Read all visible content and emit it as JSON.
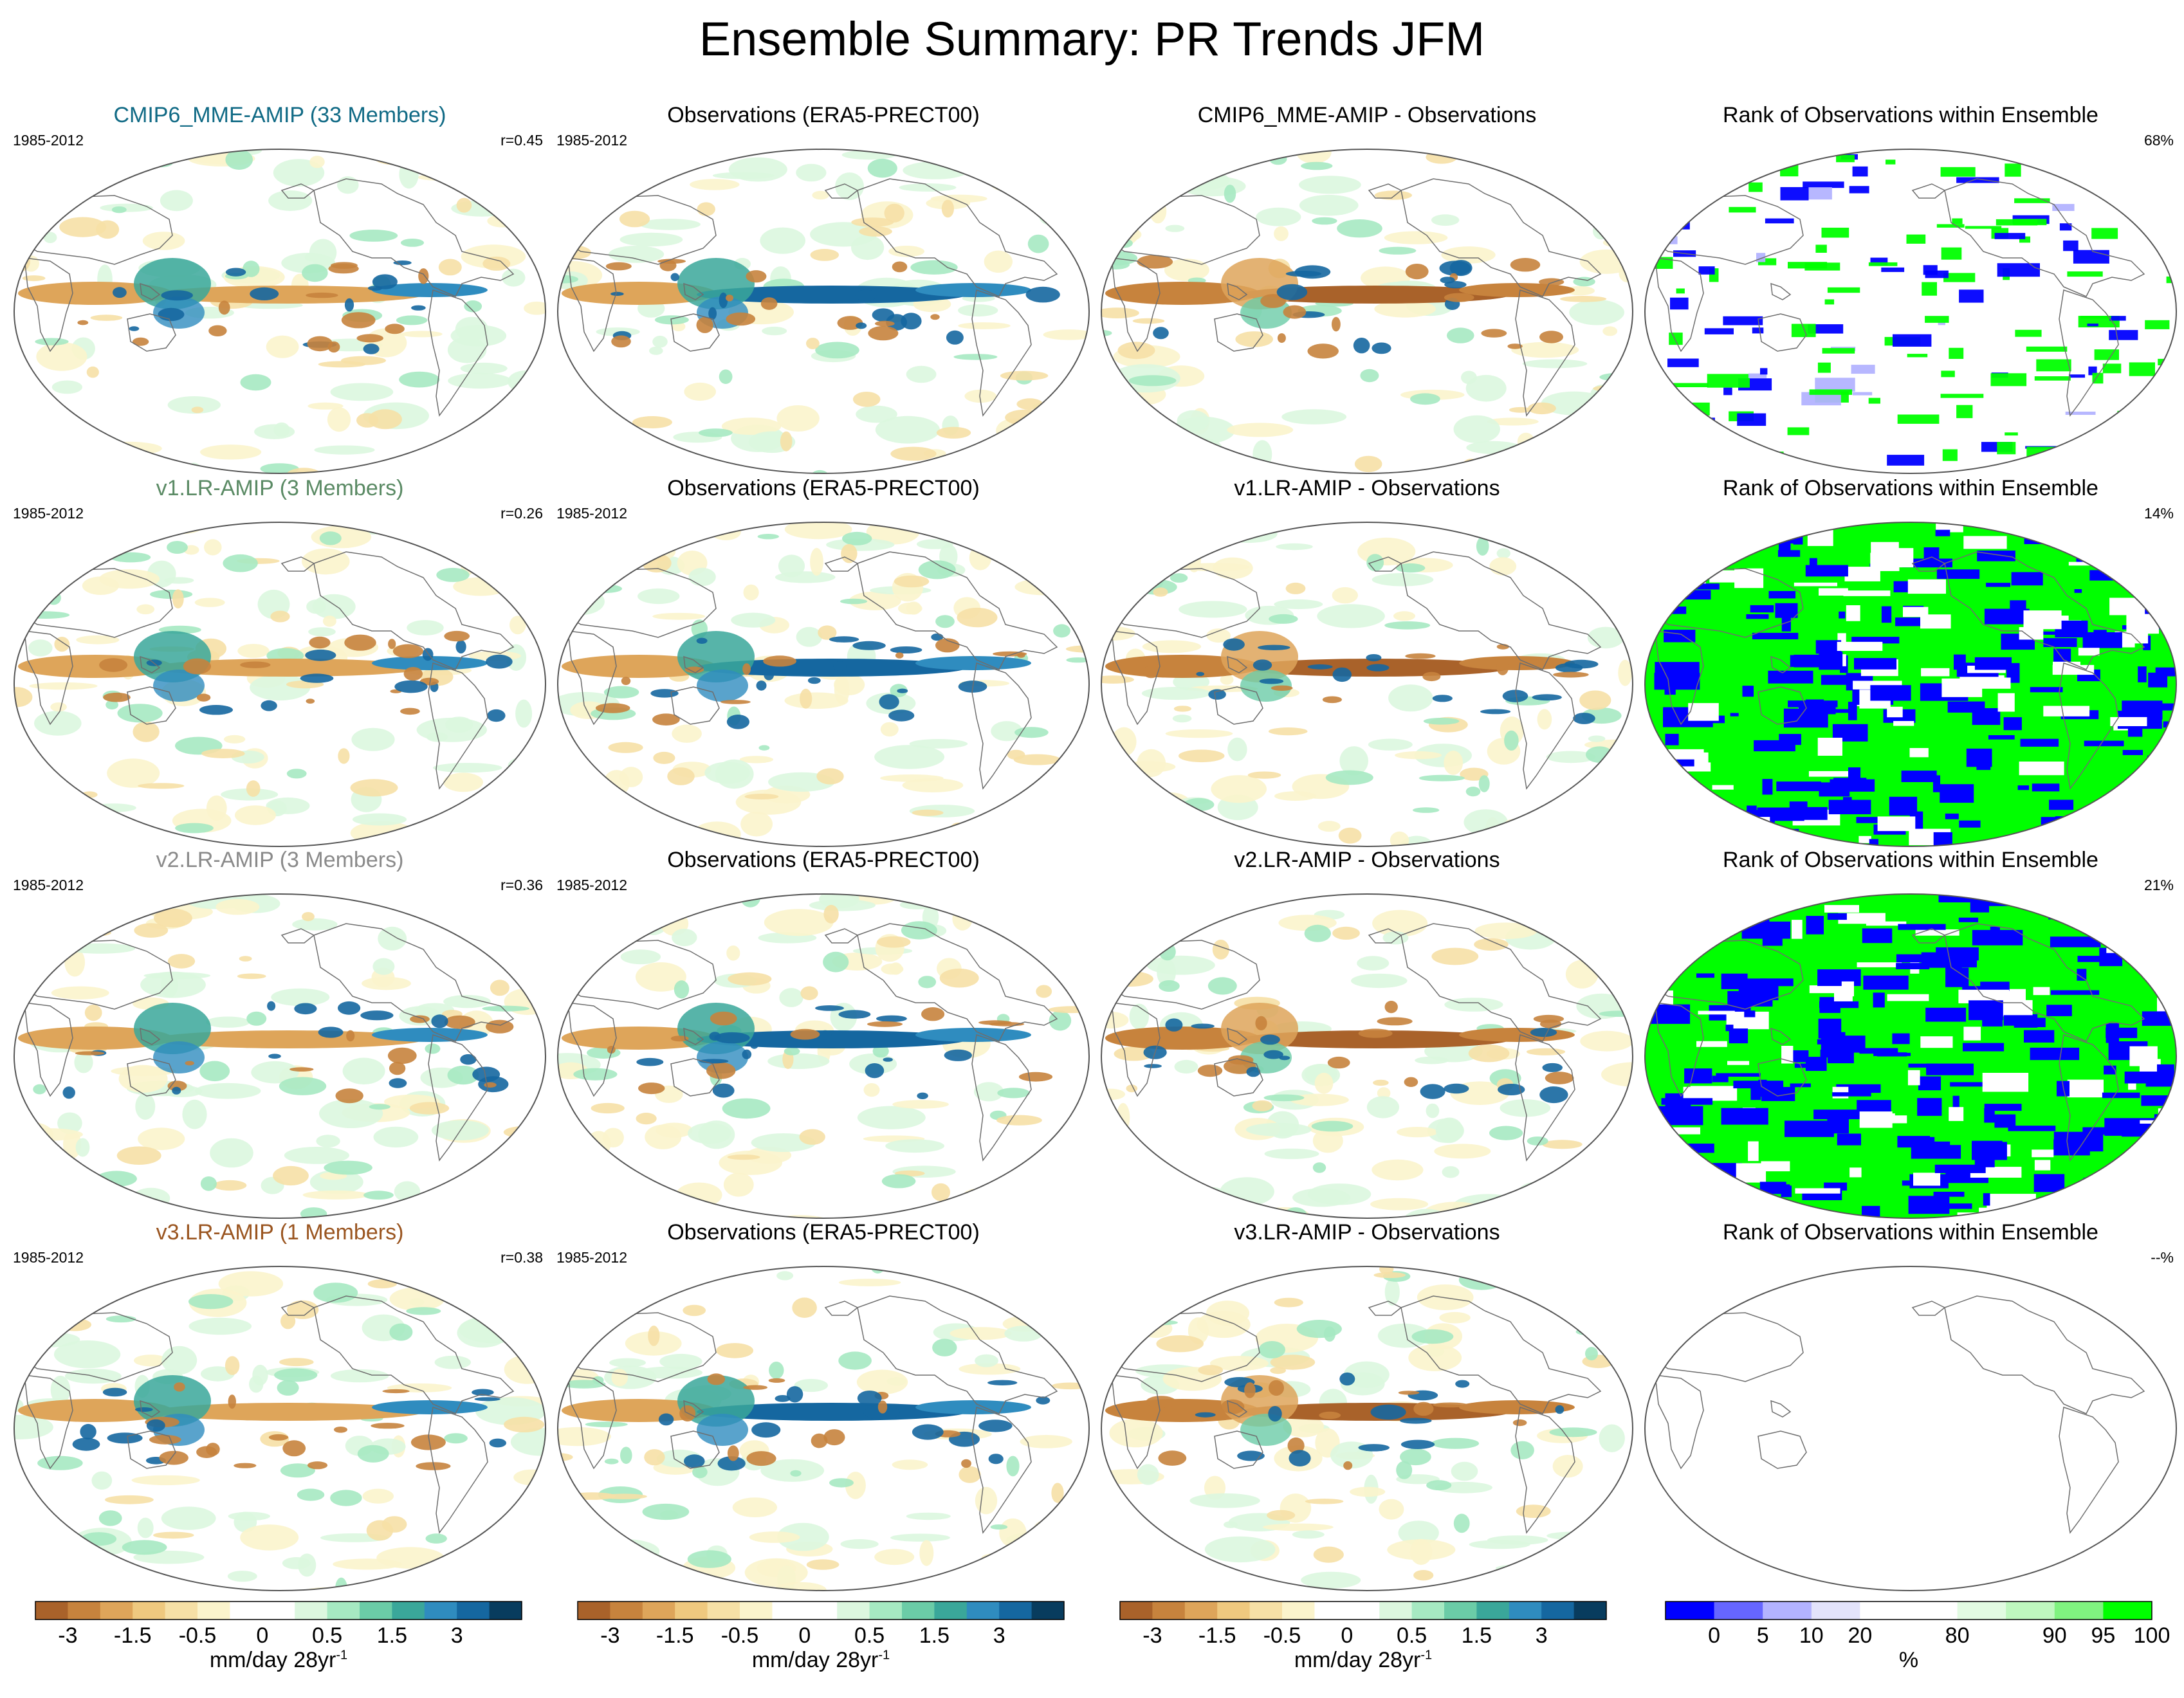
{
  "figure_title": "Ensemble Summary: PR Trends JFM",
  "colors": {
    "trend_bins": [
      "#a9622a",
      "#c7833d",
      "#dea55a",
      "#efc97f",
      "#f6e0a6",
      "#fbf4cc",
      "#ffffff",
      "#ffffff",
      "#dcf7df",
      "#a6e9c2",
      "#6bcca7",
      "#3aa79a",
      "#2f8cbf",
      "#1567a0",
      "#083c5e"
    ],
    "rank_bins": [
      "#0000ff",
      "#6666ff",
      "#b3b3ff",
      "#e3e3fb",
      "#ffffff",
      "#ffffff",
      "#e2fbe2",
      "#bff8bf",
      "#80f380",
      "#00ff00"
    ]
  },
  "rows": [
    {
      "model": {
        "title": "CMIP6_MME-AMIP (33 Members)",
        "color": "#106a85",
        "period": "1985-2012",
        "r": "r=0.45"
      },
      "obs": {
        "title": "Observations (ERA5-PRECT00)",
        "period": "1985-2012"
      },
      "diff": {
        "title": "CMIP6_MME-AMIP - Observations"
      },
      "rank": {
        "title": "Rank of Observations within Ensemble",
        "pct": "68%"
      }
    },
    {
      "model": {
        "title": "v1.LR-AMIP (3 Members)",
        "color": "#5a8a64",
        "period": "1985-2012",
        "r": "r=0.26"
      },
      "obs": {
        "title": "Observations (ERA5-PRECT00)",
        "period": "1985-2012"
      },
      "diff": {
        "title": "v1.LR-AMIP - Observations"
      },
      "rank": {
        "title": "Rank of Observations within Ensemble",
        "pct": "14%"
      }
    },
    {
      "model": {
        "title": "v2.LR-AMIP (3 Members)",
        "color": "#8a8a8a",
        "period": "1985-2012",
        "r": "r=0.36"
      },
      "obs": {
        "title": "Observations (ERA5-PRECT00)",
        "period": "1985-2012"
      },
      "diff": {
        "title": "v2.LR-AMIP - Observations"
      },
      "rank": {
        "title": "Rank of Observations within Ensemble",
        "pct": "21%"
      }
    },
    {
      "model": {
        "title": "v3.LR-AMIP (1 Members)",
        "color": "#9a5520",
        "period": "1985-2012",
        "r": "r=0.38"
      },
      "obs": {
        "title": "Observations (ERA5-PRECT00)",
        "period": "1985-2012"
      },
      "diff": {
        "title": "v3.LR-AMIP - Observations"
      },
      "rank": {
        "title": "Rank of Observations within Ensemble",
        "pct": "--%"
      }
    }
  ],
  "colorbars": {
    "trend": {
      "ticks": [
        "-3",
        "-1.5",
        "-0.5",
        "0",
        "0.5",
        "1.5",
        "3"
      ],
      "label": "mm/day 28yr",
      "label_sup": "-1"
    },
    "rank": {
      "ticks": [
        "0",
        "5",
        "10",
        "20",
        "80",
        "90",
        "95",
        "100"
      ],
      "label": "%"
    }
  },
  "chart_data": {
    "type": "heatmap",
    "title": "Ensemble Summary: PR Trends JFM",
    "variable": "PR trend",
    "season": "JFM",
    "period": "1985-2012",
    "pattern_correlations": [
      {
        "model": "CMIP6_MME-AMIP (33 Members)",
        "r": 0.45
      },
      {
        "model": "v1.LR-AMIP (3 Members)",
        "r": 0.26
      },
      {
        "model": "v2.LR-AMIP (3 Members)",
        "r": 0.36
      },
      {
        "model": "v3.LR-AMIP (1 Members)",
        "r": 0.38
      }
    ],
    "observation_rank_percent": [
      {
        "model": "CMIP6_MME-AMIP",
        "value": 68
      },
      {
        "model": "v1.LR-AMIP",
        "value": 14
      },
      {
        "model": "v2.LR-AMIP",
        "value": 21
      },
      {
        "model": "v3.LR-AMIP",
        "value": null
      }
    ],
    "trend_colorbar_ticks": [
      -3,
      -1.5,
      -0.5,
      0,
      0.5,
      1.5,
      3
    ],
    "trend_units": "mm/day 28yr-1",
    "rank_colorbar_ticks": [
      0,
      5,
      10,
      20,
      80,
      90,
      95,
      100
    ],
    "rank_units": "%"
  }
}
